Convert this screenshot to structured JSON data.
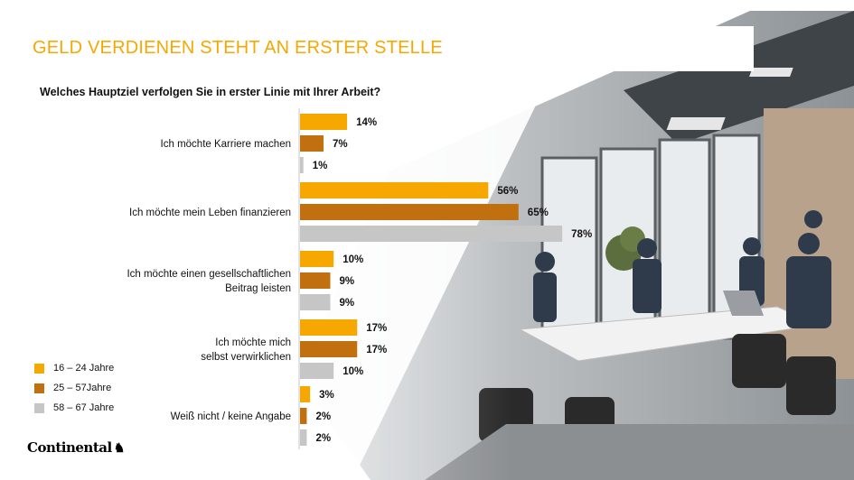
{
  "slide": {
    "title": "GELD VERDIENEN STEHT AN ERSTER STELLE",
    "question": "Welches Hauptziel verfolgen Sie in erster Linie mit Ihrer Arbeit?",
    "logo_text": "Continental",
    "logo_icon": "horse-icon"
  },
  "colors": {
    "title": "#f6a800",
    "series_1": "#f6a800",
    "series_2": "#c0700e",
    "series_3": "#c6c6c6"
  },
  "legend": [
    {
      "label": "16 – 24 Jahre"
    },
    {
      "label": "25 – 57Jahre"
    },
    {
      "label": "58 – 67 Jahre"
    }
  ],
  "chart_data": {
    "type": "bar",
    "orientation": "horizontal",
    "categories": [
      [
        "Ich möchte Karriere machen"
      ],
      [
        "Ich möchte mein Leben finanzieren"
      ],
      [
        "Ich möchte einen gesellschaftlichen",
        "Beitrag leisten"
      ],
      [
        "Ich möchte mich",
        "selbst verwirklichen"
      ],
      [
        "Weiß nicht / keine Angabe"
      ]
    ],
    "series": [
      {
        "name": "16 – 24 Jahre",
        "values": [
          14,
          56,
          10,
          17,
          3
        ],
        "labels": [
          "14%",
          "56%",
          "10%",
          "17%",
          "3%"
        ]
      },
      {
        "name": "25 – 57Jahre",
        "values": [
          7,
          65,
          9,
          17,
          2
        ],
        "labels": [
          "7%",
          "65%",
          "9%",
          "17%",
          "2%"
        ]
      },
      {
        "name": "58 – 67 Jahre",
        "values": [
          1,
          78,
          9,
          10,
          2
        ],
        "labels": [
          "1%",
          "78%",
          "9%",
          "10%",
          "2%"
        ]
      }
    ],
    "unit": "%",
    "legend_position": "bottom-left",
    "grid": false
  }
}
